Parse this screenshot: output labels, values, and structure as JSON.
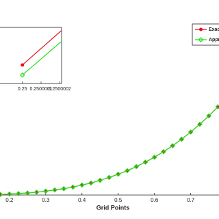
{
  "chart_data": [
    {
      "type": "line",
      "xlabel": "Grid Points",
      "x": [
        0.175,
        0.2,
        0.225,
        0.25,
        0.275,
        0.3,
        0.325,
        0.35,
        0.375,
        0.4,
        0.425,
        0.45,
        0.475,
        0.5,
        0.525,
        0.55,
        0.575,
        0.6,
        0.625,
        0.65,
        0.675,
        0.7,
        0.725,
        0.75,
        0.775
      ],
      "series": [
        {
          "name": "Exact",
          "color": "#e8101a",
          "marker": "star",
          "values": [
            0.003,
            0.005,
            0.007,
            0.01,
            0.014,
            0.019,
            0.025,
            0.031,
            0.039,
            0.049,
            0.059,
            0.072,
            0.086,
            0.102,
            0.119,
            0.139,
            0.161,
            0.185,
            0.212,
            0.241,
            0.273,
            0.308,
            0.346,
            0.387,
            0.431
          ]
        },
        {
          "name": "Approximate",
          "color": "#22e022",
          "marker": "diamond",
          "values": [
            0.003,
            0.005,
            0.007,
            0.01,
            0.014,
            0.019,
            0.025,
            0.031,
            0.039,
            0.049,
            0.059,
            0.072,
            0.086,
            0.102,
            0.119,
            0.139,
            0.161,
            0.185,
            0.212,
            0.241,
            0.273,
            0.308,
            0.346,
            0.387,
            0.431
          ]
        }
      ],
      "xlim": [
        0.174,
        0.778
      ],
      "ylim": [
        0,
        0.95
      ],
      "xticks": [
        0.2,
        0.3,
        0.4,
        0.5,
        0.6,
        0.7
      ],
      "legend": "upper right"
    },
    {
      "type": "line",
      "x": [
        0.25,
        0.2500003
      ],
      "series": [
        {
          "name": "Exact",
          "color": "#e8101a",
          "marker": "star",
          "values": [
            0.0103033,
            0.0103121
          ]
        },
        {
          "name": "Approximate",
          "color": "#22e022",
          "marker": "diamond",
          "values": [
            0.0103015,
            0.0103101
          ]
        }
      ],
      "xlim": [
        0.24999988,
        0.25000021
      ],
      "ylim": [
        0.0103,
        0.01031
      ],
      "xticks": [
        0.25,
        0.2500001,
        0.2500002
      ]
    }
  ]
}
